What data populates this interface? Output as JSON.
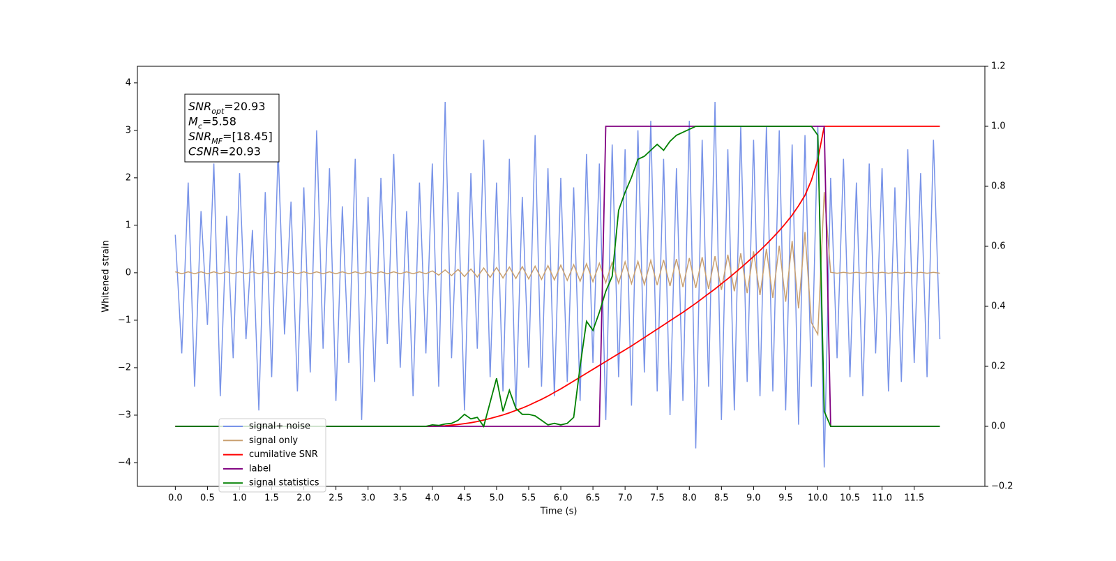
{
  "chart_data": {
    "type": "line",
    "xlabel": "Time (s)",
    "ylabel": "Whitened strain",
    "xlim": [
      -0.59,
      12.6
    ],
    "ylim": [
      -4.5,
      4.35
    ],
    "y2lim": [
      -0.2,
      1.2
    ],
    "xticks": [
      {
        "value": 0,
        "label": "0.0"
      },
      0.5,
      {
        "value": 1,
        "label": "1.0"
      },
      1.5,
      {
        "value": 2,
        "label": "2.0"
      },
      2.5,
      {
        "value": 3,
        "label": "3.0"
      },
      3.5,
      {
        "value": 4,
        "label": "4.0"
      },
      4.5,
      {
        "value": 5,
        "label": "5.0"
      },
      5.5,
      {
        "value": 6,
        "label": "6.0"
      },
      6.5,
      {
        "value": 7,
        "label": "7.0"
      },
      7.5,
      {
        "value": 8,
        "label": "8.0"
      },
      8.5,
      {
        "value": 9,
        "label": "9.0"
      },
      9.5,
      {
        "value": 10,
        "label": "10.0"
      },
      10.5,
      {
        "value": 11,
        "label": "11.0"
      },
      11.5
    ],
    "yticks": [
      {
        "value": -4,
        "label": "−4"
      },
      {
        "value": -3,
        "label": "−3"
      },
      {
        "value": -2,
        "label": "−2"
      },
      {
        "value": -1,
        "label": "−1"
      },
      0,
      1,
      2,
      3,
      4
    ],
    "y2ticks": [
      {
        "value": -0.2,
        "label": "−0.2"
      },
      {
        "value": 0,
        "label": "0.0"
      },
      0.2,
      0.4,
      0.6,
      0.8,
      {
        "value": 1,
        "label": "1.0"
      },
      1.2
    ],
    "annotation": [
      {
        "name": "SNR",
        "sub": "opt",
        "text": "=20.93"
      },
      {
        "name": "M",
        "sub": "c",
        "text": "=5.58"
      },
      {
        "name": "SNR",
        "sub": "MF",
        "text": "=[18.45]"
      },
      {
        "name": "CSNR",
        "sub": null,
        "text": "=20.93"
      }
    ],
    "x": [
      0,
      0.1,
      0.2,
      0.3,
      0.4,
      0.5,
      0.6,
      0.7,
      0.8,
      0.9,
      1,
      1.1,
      1.2,
      1.3,
      1.4,
      1.5,
      1.6,
      1.7,
      1.8,
      1.9,
      2,
      2.1,
      2.2,
      2.3,
      2.4,
      2.5,
      2.6,
      2.7,
      2.8,
      2.9,
      3,
      3.1,
      3.2,
      3.3,
      3.4,
      3.5,
      3.6,
      3.7,
      3.8,
      3.9,
      4,
      4.1,
      4.2,
      4.3,
      4.4,
      4.5,
      4.6,
      4.7,
      4.8,
      4.9,
      5,
      5.1,
      5.2,
      5.3,
      5.4,
      5.5,
      5.6,
      5.7,
      5.8,
      5.9,
      6,
      6.1,
      6.2,
      6.3,
      6.4,
      6.5,
      6.6,
      6.7,
      6.8,
      6.9,
      7,
      7.1,
      7.2,
      7.3,
      7.4,
      7.5,
      7.6,
      7.7,
      7.8,
      7.9,
      8,
      8.1,
      8.2,
      8.3,
      8.4,
      8.5,
      8.6,
      8.7,
      8.8,
      8.9,
      9,
      9.1,
      9.2,
      9.3,
      9.4,
      9.5,
      9.6,
      9.7,
      9.8,
      9.9,
      10,
      10.1,
      10.2,
      10.3,
      10.4,
      10.5,
      10.6,
      10.7,
      10.8,
      10.9,
      11,
      11.1,
      11.2,
      11.3,
      11.4,
      11.5,
      11.6,
      11.7,
      11.8,
      11.9
    ],
    "series": [
      {
        "name": "signal+ noise",
        "color": "#7893e8",
        "axis": "y",
        "values": [
          0.8,
          -1.7,
          1.9,
          -2.4,
          1.3,
          -1.1,
          2.3,
          -2.6,
          1.2,
          -1.8,
          2.1,
          -1.4,
          0.9,
          -2.9,
          1.7,
          -2.2,
          2.6,
          -1.3,
          1.5,
          -2.5,
          1.8,
          -2.1,
          3.0,
          -1.6,
          2.2,
          -2.7,
          1.4,
          -1.9,
          2.4,
          -3.1,
          1.6,
          -2.3,
          2.0,
          -1.5,
          2.5,
          -2.0,
          1.3,
          -2.6,
          1.9,
          -1.7,
          2.3,
          -2.4,
          3.6,
          -1.8,
          1.7,
          -2.9,
          2.1,
          -1.6,
          2.8,
          -2.2,
          1.9,
          -2.5,
          2.4,
          -2.9,
          1.6,
          -2.0,
          2.9,
          -2.4,
          2.2,
          -2.6,
          2.0,
          -2.3,
          1.8,
          -2.7,
          2.5,
          -1.9,
          2.3,
          -3.1,
          2.7,
          -2.2,
          2.6,
          -2.8,
          3.0,
          -2.1,
          3.2,
          -2.5,
          2.4,
          -3.0,
          2.2,
          -2.7,
          3.2,
          -3.7,
          2.8,
          -2.4,
          3.6,
          -3.1,
          2.6,
          -2.9,
          3.1,
          -2.3,
          2.8,
          -2.6,
          3.1,
          -2.5,
          3.0,
          -2.9,
          2.7,
          -3.2,
          2.9,
          -2.4,
          3.1,
          -4.1,
          2.0,
          -1.8,
          2.4,
          -2.2,
          1.9,
          -2.6,
          2.3,
          -1.7,
          2.2,
          -2.5,
          1.8,
          -2.3,
          2.6,
          -1.9,
          2.1,
          -2.2,
          2.8,
          -1.4
        ]
      },
      {
        "name": "signal only",
        "color": "#c9a070",
        "axis": "y",
        "values": [
          0.02,
          -0.02,
          0.02,
          -0.02,
          0.02,
          -0.02,
          0.02,
          -0.02,
          0.02,
          -0.02,
          0.02,
          -0.02,
          0.02,
          -0.02,
          0.02,
          -0.02,
          0.02,
          -0.02,
          0.02,
          -0.02,
          0.02,
          -0.02,
          0.02,
          -0.02,
          0.02,
          -0.02,
          0.02,
          -0.02,
          0.02,
          -0.02,
          0.02,
          -0.02,
          0.02,
          -0.02,
          0.02,
          -0.02,
          0.02,
          -0.02,
          0.02,
          -0.02,
          0.04,
          -0.05,
          0.06,
          -0.06,
          0.07,
          -0.08,
          0.08,
          -0.09,
          0.1,
          -0.1,
          0.11,
          -0.11,
          0.12,
          -0.12,
          0.13,
          -0.13,
          0.14,
          -0.14,
          0.15,
          -0.15,
          0.16,
          -0.16,
          0.17,
          -0.18,
          0.19,
          -0.19,
          0.2,
          -0.21,
          0.22,
          -0.22,
          0.23,
          -0.23,
          0.24,
          -0.25,
          0.26,
          -0.26,
          0.27,
          -0.28,
          0.29,
          -0.3,
          0.31,
          -0.32,
          0.33,
          -0.34,
          0.35,
          -0.36,
          0.38,
          -0.39,
          0.41,
          -0.43,
          0.45,
          -0.47,
          0.5,
          -0.53,
          0.57,
          -0.61,
          0.67,
          -0.75,
          0.86,
          -1.05,
          -1.3,
          1.7,
          0.01,
          -0.01,
          0.01,
          -0.01,
          0.01,
          -0.01,
          0.01,
          -0.01,
          0.01,
          -0.01,
          0.01,
          -0.01,
          0.01,
          -0.01,
          0.01,
          -0.01,
          0.01,
          -0.01
        ]
      },
      {
        "name": "cumilative SNR",
        "color": "#ff0000",
        "axis": "y2",
        "values": [
          0,
          0,
          0,
          0,
          0,
          0,
          0,
          0,
          0,
          0,
          0,
          0,
          0,
          0,
          0,
          0,
          0,
          0,
          0,
          0,
          0,
          0,
          0,
          0,
          0,
          0,
          0,
          0,
          0,
          0,
          0,
          0,
          0,
          0,
          0,
          0,
          0,
          0,
          0,
          0,
          0,
          0.001,
          0.002,
          0.004,
          0.006,
          0.009,
          0.012,
          0.016,
          0.021,
          0.026,
          0.032,
          0.038,
          0.045,
          0.053,
          0.061,
          0.07,
          0.08,
          0.09,
          0.101,
          0.113,
          0.125,
          0.138,
          0.151,
          0.164,
          0.177,
          0.19,
          0.203,
          0.216,
          0.229,
          0.242,
          0.255,
          0.268,
          0.282,
          0.296,
          0.31,
          0.324,
          0.338,
          0.352,
          0.366,
          0.38,
          0.395,
          0.41,
          0.426,
          0.442,
          0.458,
          0.475,
          0.492,
          0.51,
          0.528,
          0.547,
          0.566,
          0.586,
          0.607,
          0.629,
          0.652,
          0.677,
          0.704,
          0.735,
          0.77,
          0.82,
          0.89,
          1,
          1,
          1,
          1,
          1,
          1,
          1,
          1,
          1,
          1,
          1,
          1,
          1,
          1,
          1,
          1,
          1,
          1,
          1
        ]
      },
      {
        "name": "label",
        "color": "#800080",
        "axis": "y2",
        "values": [
          0,
          0,
          0,
          0,
          0,
          0,
          0,
          0,
          0,
          0,
          0,
          0,
          0,
          0,
          0,
          0,
          0,
          0,
          0,
          0,
          0,
          0,
          0,
          0,
          0,
          0,
          0,
          0,
          0,
          0,
          0,
          0,
          0,
          0,
          0,
          0,
          0,
          0,
          0,
          0,
          0,
          0,
          0,
          0,
          0,
          0,
          0,
          0,
          0,
          0,
          0,
          0,
          0,
          0,
          0,
          0,
          0,
          0,
          0,
          0,
          0,
          0,
          0,
          0,
          0,
          0,
          0,
          1,
          1,
          1,
          1,
          1,
          1,
          1,
          1,
          1,
          1,
          1,
          1,
          1,
          1,
          1,
          1,
          1,
          1,
          1,
          1,
          1,
          1,
          1,
          1,
          1,
          1,
          1,
          1,
          1,
          1,
          1,
          1,
          1,
          1,
          1,
          0,
          0,
          0,
          0,
          0,
          0,
          0,
          0,
          0,
          0,
          0,
          0,
          0,
          0,
          0,
          0,
          0,
          0
        ]
      },
      {
        "name": "signal statistics",
        "color": "#008000",
        "axis": "y2",
        "values": [
          0,
          0,
          0,
          0,
          0,
          0,
          0,
          0,
          0,
          0,
          0,
          0,
          0,
          0,
          0,
          0,
          0,
          0,
          0,
          0,
          0,
          0,
          0,
          0,
          0,
          0,
          0,
          0,
          0,
          0,
          0,
          0,
          0,
          0,
          0,
          0,
          0,
          0,
          0,
          0,
          0.005,
          0.003,
          0.008,
          0.01,
          0.02,
          0.04,
          0.025,
          0.03,
          0,
          0.08,
          0.16,
          0.05,
          0.12,
          0.06,
          0.04,
          0.04,
          0.035,
          0.02,
          0.005,
          0.01,
          0.005,
          0.01,
          0.03,
          0.2,
          0.35,
          0.32,
          0.38,
          0.45,
          0.5,
          0.72,
          0.78,
          0.83,
          0.89,
          0.9,
          0.92,
          0.94,
          0.92,
          0.95,
          0.97,
          0.98,
          0.99,
          1,
          1,
          1,
          1,
          1,
          1,
          1,
          1,
          1,
          1,
          1,
          1,
          1,
          1,
          1,
          1,
          1,
          1,
          1,
          0.97,
          0.05,
          0,
          0,
          0,
          0,
          0,
          0,
          0,
          0,
          0,
          0,
          0,
          0,
          0,
          0,
          0,
          0,
          0,
          0
        ]
      }
    ]
  }
}
